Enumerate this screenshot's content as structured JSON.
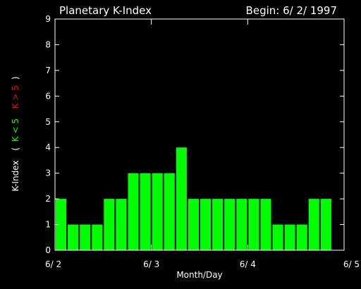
{
  "chart_data": {
    "type": "bar",
    "title": "Planetary K-Index",
    "begin_label": "Begin: 6/ 2/ 1997",
    "xlabel": "Month/Day",
    "ylabel": "K-Index",
    "ylabel_legend": {
      "open": "(",
      "low": "K < 5",
      "high": "K > 5",
      "close": ")"
    },
    "ylim": [
      0,
      9
    ],
    "yticks": [
      "0",
      "1",
      "2",
      "3",
      "4",
      "5",
      "6",
      "7",
      "8",
      "9"
    ],
    "x_tick_labels": [
      "6/ 2",
      "6/ 3",
      "6/ 4",
      "6/ 5"
    ],
    "bars_per_day": 8,
    "values": [
      2,
      1,
      1,
      1,
      2,
      2,
      3,
      3,
      3,
      3,
      4,
      2,
      2,
      2,
      2,
      2,
      2,
      2,
      1,
      1,
      1,
      2,
      2
    ],
    "colors": {
      "low": "#00ff00",
      "high": "#ff0000",
      "axis": "#ffffff",
      "background": "#000000"
    }
  }
}
